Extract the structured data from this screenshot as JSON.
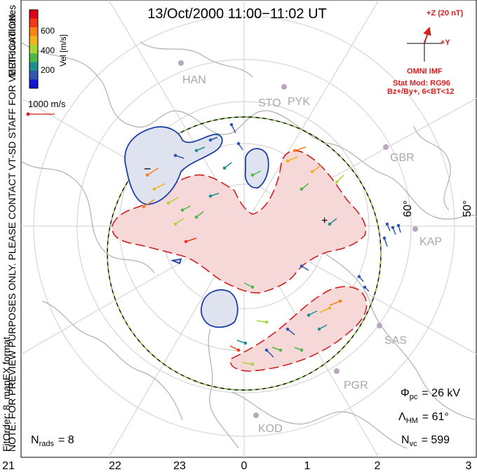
{
  "title": "13/Oct/2000 11:00−11:02 UT",
  "preview_note": "NOTE: FOR PREVIEW PURPOSES ONLY. PLEASE CONTACT VT-SD STAFF FOR VERIFICATION.",
  "fit_info": "FitOrder: 8, mapEX format",
  "coords_label": "MLT coordinates",
  "colorbar": {
    "label": "Vel [m/s]",
    "ticks": [
      "600",
      "400",
      "200"
    ],
    "colors": [
      "#e0001a",
      "#ef3a15",
      "#f6821c",
      "#f4b21a",
      "#a9d636",
      "#4cb848",
      "#1e8f8e",
      "#2f57b0",
      "#1515d8"
    ]
  },
  "scale_vector": "1000 m/s",
  "imf": {
    "z_label": "+Z (20 nT)",
    "y_label": "+Y",
    "source": "OMNI IMF",
    "model": "Stat Mod: RG96",
    "condition": "Bz+/By+, 6<BT<12"
  },
  "stations": [
    "HAN",
    "STO",
    "PYK",
    "GBR",
    "KAP",
    "SAS",
    "PGR",
    "KOD"
  ],
  "lat_labels": [
    "60°",
    "50°"
  ],
  "mlt_axis": [
    "21",
    "22",
    "23",
    "0",
    "1",
    "2",
    "3"
  ],
  "stats": {
    "phi_symbol": "Φ",
    "phi_sub": "pc",
    "phi_value": "= 26 kV",
    "lambda_symbol": "Λ",
    "lambda_sub": "HM",
    "lambda_value": "= 61°",
    "nvc_symbol": "N",
    "nvc_sub": "vc",
    "nvc_value": "= 599",
    "nrads_symbol": "N",
    "nrads_sub": "rads",
    "nrads_value": "= 8"
  },
  "markers": {
    "min": "−",
    "max": "+"
  },
  "colors": {
    "positive_contour": "#d21f1f",
    "negative_contour": "#1f3fa8",
    "positive_fill": "#f6d8d8",
    "negative_fill": "#dfe3f0",
    "station_label": "#a8a8a8",
    "imf": "#d21f1f",
    "boundary_dash": "#8ccf3c"
  }
}
